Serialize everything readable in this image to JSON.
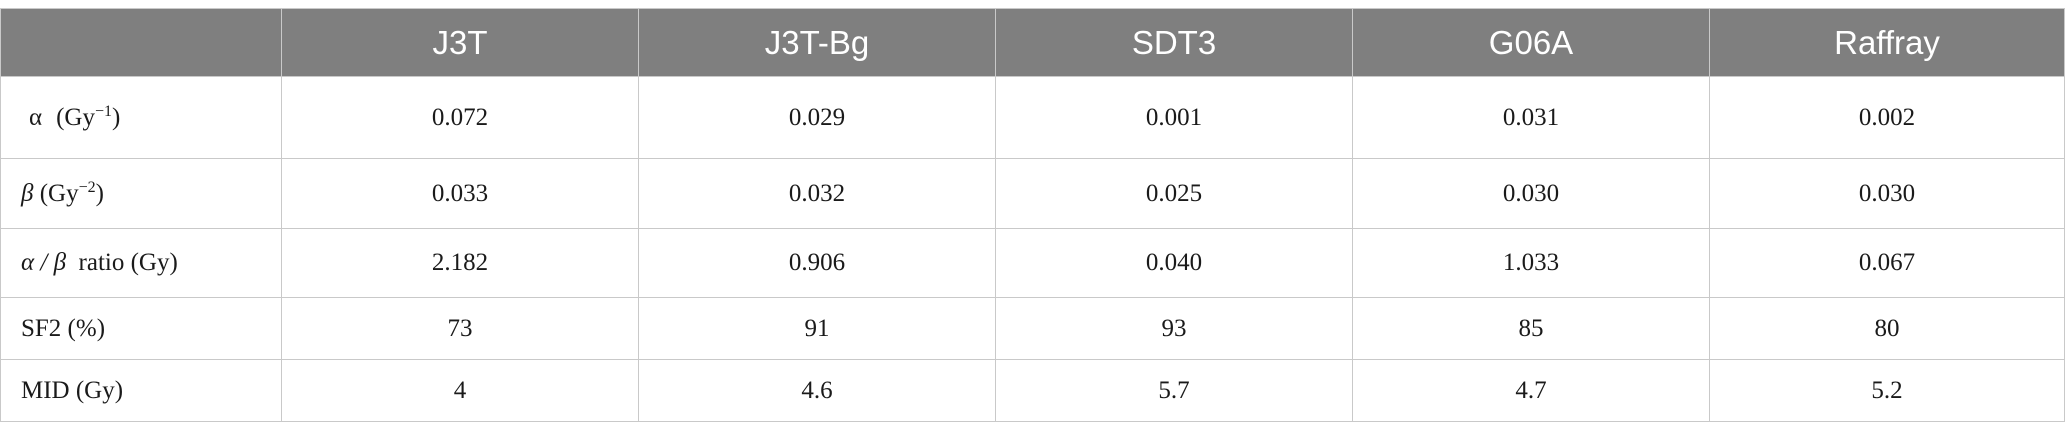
{
  "table": {
    "columns": [
      "",
      "J3T",
      "J3T-Bg",
      "SDT3",
      "G06A",
      "Raffray"
    ],
    "rows": [
      {
        "label_symbol": "α",
        "label_unit": "(Gy",
        "label_exp": "−1",
        "label_close": ")",
        "values": [
          "0.072",
          "0.029",
          "0.001",
          "0.031",
          "0.002"
        ]
      },
      {
        "label_symbol": "β",
        "label_unit": "(Gy",
        "label_exp": "−2",
        "label_close": ")",
        "values": [
          "0.033",
          "0.032",
          "0.025",
          "0.030",
          "0.030"
        ]
      },
      {
        "label_symbol": "α / β",
        "label_text": "ratio (Gy)",
        "values": [
          "2.182",
          "0.906",
          "0.040",
          "1.033",
          "0.067"
        ]
      },
      {
        "label_text": "SF2 (%)",
        "values": [
          "73",
          "91",
          "93",
          "85",
          "80"
        ]
      },
      {
        "label_text": "MID (Gy)",
        "values": [
          "4",
          "4.6",
          "5.7",
          "4.7",
          "5.2"
        ]
      }
    ]
  }
}
